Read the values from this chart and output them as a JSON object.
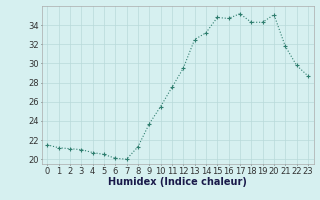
{
  "x": [
    0,
    1,
    2,
    3,
    4,
    5,
    6,
    7,
    8,
    9,
    10,
    11,
    12,
    13,
    14,
    15,
    16,
    17,
    18,
    19,
    20,
    21,
    22,
    23
  ],
  "y": [
    21.5,
    21.2,
    21.1,
    21.0,
    20.7,
    20.5,
    20.1,
    20.0,
    21.3,
    23.7,
    25.5,
    27.5,
    29.5,
    32.5,
    33.2,
    34.8,
    34.7,
    35.2,
    34.3,
    34.3,
    35.1,
    31.8,
    29.8,
    28.7
  ],
  "line_color": "#2e7d6e",
  "marker": "+",
  "marker_size": 3,
  "bg_color": "#d6f0f0",
  "grid_color": "#b8dada",
  "xlabel": "Humidex (Indice chaleur)",
  "ylim": [
    19.5,
    36.0
  ],
  "yticks": [
    20,
    22,
    24,
    26,
    28,
    30,
    32,
    34
  ],
  "xlim": [
    -0.5,
    23.5
  ],
  "label_fontsize": 7,
  "tick_fontsize": 6
}
